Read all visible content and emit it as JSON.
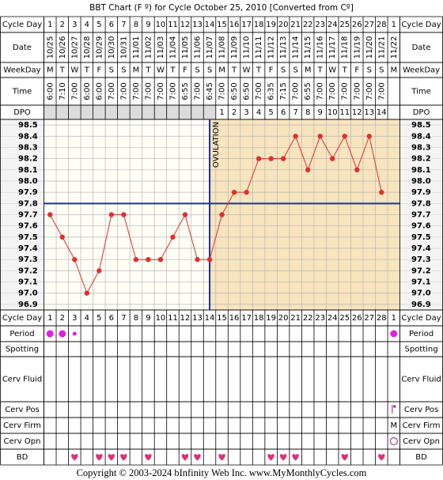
{
  "chart_data": {
    "type": "line",
    "title": "BBT Chart (F º) for Cycle October 25, 2010  [Converted from Cº]",
    "row_labels": {
      "cycle_day": "Cycle Day",
      "date": "Date",
      "weekday": "WeekDay",
      "time": "Time",
      "dpo": "DPO",
      "period": "Period",
      "spotting": "Spotting",
      "cerv_fluid": "Cerv Fluid",
      "cerv_pos": "Cerv Pos",
      "cerv_firm": "Cerv Firm",
      "cerv_opn": "Cerv Opn",
      "bd": "BD"
    },
    "cycle_days": [
      1,
      2,
      3,
      4,
      5,
      6,
      7,
      8,
      9,
      10,
      11,
      12,
      13,
      14,
      15,
      16,
      17,
      18,
      19,
      20,
      21,
      22,
      23,
      24,
      25,
      26,
      27,
      28,
      1
    ],
    "dates": [
      "10/25",
      "10/26",
      "10/27",
      "10/28",
      "10/29",
      "10/30",
      "10/31",
      "11/01",
      "11/02",
      "11/03",
      "11/04",
      "11/05",
      "11/06",
      "11/07",
      "11/08",
      "11/09",
      "11/10",
      "11/11",
      "11/12",
      "11/13",
      "11/14",
      "11/15",
      "11/16",
      "11/17",
      "11/18",
      "11/19",
      "11/20",
      "11/21",
      "11/22"
    ],
    "weekdays": [
      "M",
      "T",
      "W",
      "T",
      "F",
      "S",
      "S",
      "M",
      "T",
      "W",
      "T",
      "F",
      "S",
      "S",
      "M",
      "T",
      "W",
      "T",
      "F",
      "S",
      "S",
      "M",
      "T",
      "W",
      "T",
      "F",
      "S",
      "S",
      "M"
    ],
    "times": [
      "6:00",
      "7:10",
      "7:00",
      "6:00",
      "6:00",
      "7:00",
      "7:00",
      "7:00",
      "7:00",
      "7:00",
      "7:00",
      "6:55",
      "7:00",
      "6:45",
      "7:00",
      "6:50",
      "6:50",
      "7:00",
      "6:35",
      "7:15",
      "7:00",
      "6:55",
      "7:00",
      "7:00",
      "7:00",
      "7:00",
      "7:00",
      "7:00",
      null
    ],
    "dpo": [
      null,
      null,
      null,
      null,
      null,
      null,
      null,
      null,
      null,
      null,
      null,
      null,
      null,
      null,
      1,
      2,
      3,
      4,
      5,
      6,
      7,
      8,
      9,
      10,
      11,
      12,
      13,
      14,
      null
    ],
    "values": [
      97.7,
      97.5,
      97.3,
      97.0,
      97.2,
      97.7,
      97.7,
      97.3,
      97.3,
      97.3,
      97.5,
      97.7,
      97.3,
      97.3,
      97.7,
      97.9,
      97.9,
      98.2,
      98.2,
      98.2,
      98.4,
      98.1,
      98.4,
      98.2,
      98.4,
      98.1,
      98.4,
      97.9,
      null
    ],
    "color": "#e03030",
    "ylim": [
      96.85,
      98.55
    ],
    "yticks": [
      98.5,
      98.4,
      98.3,
      98.2,
      98.1,
      {
        "value": 98.0,
        "label": "98.0"
      },
      97.9,
      97.8,
      97.7,
      97.6,
      97.5,
      97.4,
      97.3,
      97.2,
      97.1,
      {
        "value": 97.0,
        "label": "97.0"
      },
      96.9
    ],
    "grid": true,
    "coverline": 97.8,
    "coverline_color": "#1a2fb0",
    "ovulation_day": 14,
    "ovulation_label": "OVULATION",
    "luteal_color": "#f8e4bd",
    "period": [
      "heavy",
      "heavy",
      "light",
      null,
      null,
      null,
      null,
      null,
      null,
      null,
      null,
      null,
      null,
      null,
      null,
      null,
      null,
      null,
      null,
      null,
      null,
      null,
      null,
      null,
      null,
      null,
      null,
      null,
      "heavy"
    ],
    "period_color": "#e020e0",
    "bd_days": [
      3,
      5,
      6,
      7,
      9,
      12,
      13,
      15,
      19,
      20,
      21,
      25,
      28
    ],
    "bd_color": "#e0307a",
    "cerv_firm": [
      null,
      null,
      null,
      null,
      null,
      null,
      null,
      null,
      null,
      null,
      null,
      null,
      null,
      null,
      null,
      null,
      null,
      null,
      null,
      null,
      null,
      null,
      null,
      null,
      null,
      null,
      null,
      null,
      "M"
    ],
    "footer": "Copyright © 2003-2024 bInfinity Web Inc.     www.MyMonthlyCycles.com"
  }
}
